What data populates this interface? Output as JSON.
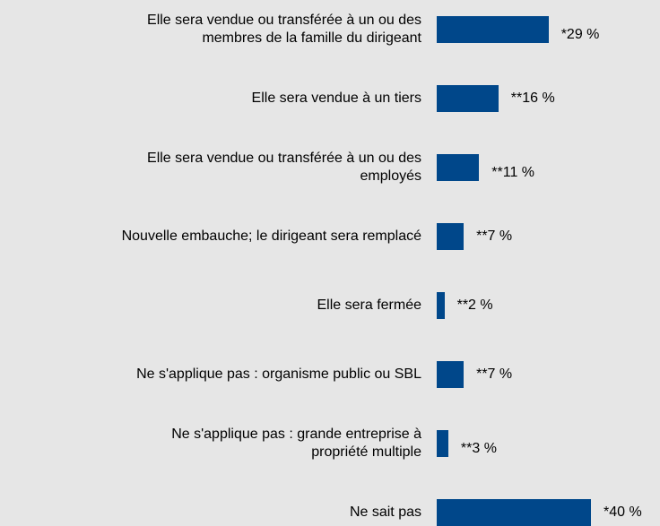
{
  "chart_data": {
    "type": "bar",
    "orientation": "horizontal",
    "color": "#00478a",
    "categories": [
      "Elle sera vendue ou transférée à un ou des\nmembres de la famille du dirigeant",
      "Elle sera vendue à un tiers",
      "Elle sera vendue ou transférée à un ou des\nemployés",
      "Nouvelle embauche; le dirigeant sera remplacé",
      "Elle sera fermée",
      "Ne s'applique pas : organisme public ou SBL",
      "Ne s'applique pas : grande entreprise à\npropriété multiple",
      "Ne sait pas"
    ],
    "values": [
      29,
      16,
      11,
      7,
      2,
      7,
      3,
      40
    ],
    "value_labels": [
      "*29 %",
      "**16 %",
      "**11 %",
      "**7 %",
      "**2 %",
      "**7 %",
      "**3 %",
      "*40 %"
    ]
  }
}
